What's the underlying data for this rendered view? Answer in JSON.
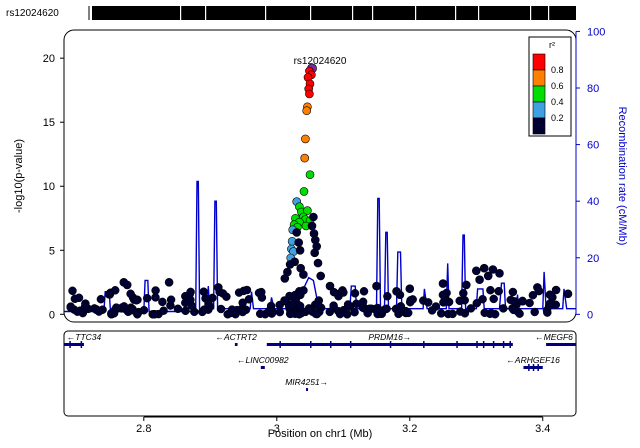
{
  "chart_data": {
    "type": "scatter",
    "title": "",
    "snp_track_label": "rs12024620",
    "lead_snp": {
      "label": "rs12024620",
      "x": 3.053,
      "y": 19.2
    },
    "xlabel": "Position on chr1 (Mb)",
    "ylabel_left": "-log10(p-value)",
    "ylabel_right": "Recombination rate (cM/Mb)",
    "xlim": [
      2.68,
      3.45
    ],
    "ylim_left": [
      -0.6,
      22.2
    ],
    "ylim_right": [
      -2.7,
      100.5
    ],
    "x_ticks": [
      "2.8",
      "3",
      "3.2",
      "3.4"
    ],
    "y_ticks_left": [
      "0",
      "5",
      "10",
      "15",
      "20"
    ],
    "y_ticks_right": [
      "0",
      "20",
      "40",
      "60",
      "80",
      "100"
    ],
    "legend": {
      "title": "r²",
      "labels": [
        "0.8",
        "0.6",
        "0.4",
        "0.2"
      ],
      "colors": [
        "#ff0000",
        "#ff7f00",
        "#00dd00",
        "#40a0e0",
        "#000033"
      ]
    },
    "colors": {
      "recombination_line": "#0000cc",
      "axis_right": "#0000cc",
      "lead_snp": "#7030a0",
      "gene": "#000080"
    },
    "points": [
      [
        3.053,
        19.2,
        "p"
      ],
      [
        3.049,
        19.0,
        "r"
      ],
      [
        3.052,
        18.7,
        "r"
      ],
      [
        3.047,
        18.5,
        "r"
      ],
      [
        3.05,
        18.0,
        "r"
      ],
      [
        3.048,
        17.6,
        "r"
      ],
      [
        3.049,
        17.2,
        "r"
      ],
      [
        3.046,
        16.2,
        "o"
      ],
      [
        3.045,
        15.9,
        "o"
      ],
      [
        3.043,
        13.7,
        "o"
      ],
      [
        3.042,
        12.2,
        "o"
      ],
      [
        3.05,
        10.9,
        "g"
      ],
      [
        3.041,
        9.6,
        "g"
      ],
      [
        3.03,
        8.8,
        "b"
      ],
      [
        3.034,
        8.4,
        "g"
      ],
      [
        3.037,
        8.0,
        "g"
      ],
      [
        3.046,
        8.1,
        "g"
      ],
      [
        3.04,
        7.6,
        "g"
      ],
      [
        3.028,
        7.5,
        "g"
      ],
      [
        3.043,
        7.4,
        "g"
      ],
      [
        3.05,
        7.3,
        "g"
      ],
      [
        3.034,
        7.2,
        "g"
      ],
      [
        3.026,
        7.0,
        "g"
      ],
      [
        3.044,
        6.9,
        "g"
      ],
      [
        3.031,
        6.8,
        "g"
      ],
      [
        3.024,
        6.6,
        "b"
      ],
      [
        3.03,
        6.4,
        "n"
      ],
      [
        3.055,
        7.6,
        "n"
      ],
      [
        3.053,
        6.9,
        "n"
      ],
      [
        3.056,
        6.3,
        "n"
      ],
      [
        3.058,
        5.8,
        "n"
      ],
      [
        3.023,
        5.7,
        "b"
      ],
      [
        3.033,
        5.6,
        "n"
      ],
      [
        3.022,
        5.1,
        "b"
      ],
      [
        3.025,
        4.9,
        "b"
      ],
      [
        3.021,
        4.4,
        "b"
      ],
      [
        3.027,
        4.1,
        "n"
      ],
      [
        3.035,
        5.0,
        "n"
      ],
      [
        3.057,
        4.8,
        "n"
      ],
      [
        3.06,
        5.3,
        "n"
      ],
      [
        3.02,
        3.9,
        "n"
      ],
      [
        3.016,
        3.3,
        "n"
      ],
      [
        3.012,
        2.8,
        "n"
      ],
      [
        3.062,
        4.0,
        "n"
      ],
      [
        3.066,
        3.0,
        "n"
      ],
      [
        3.036,
        3.6,
        "n"
      ],
      [
        3.04,
        3.1,
        "n"
      ],
      [
        2.77,
        2.5,
        "n"
      ],
      [
        2.775,
        2.3,
        "n"
      ],
      [
        2.838,
        2.5,
        "n"
      ],
      [
        2.912,
        2.1,
        "n"
      ],
      [
        2.955,
        1.9,
        "n"
      ],
      [
        3.3,
        3.4,
        "n"
      ],
      [
        3.312,
        3.6,
        "n"
      ],
      [
        3.325,
        3.5,
        "n"
      ],
      [
        3.335,
        3.2,
        "n"
      ],
      [
        3.318,
        3.0,
        "n"
      ],
      [
        3.305,
        2.7,
        "n"
      ],
      [
        3.25,
        2.4,
        "n"
      ],
      [
        3.2,
        2.0,
        "n"
      ],
      [
        3.15,
        2.2,
        "n"
      ],
      [
        3.18,
        1.8,
        "n"
      ],
      [
        3.285,
        2.3,
        "n"
      ],
      [
        3.392,
        2.1,
        "n"
      ],
      [
        3.42,
        1.9,
        "n"
      ],
      [
        3.438,
        1.6,
        "n"
      ],
      [
        3.1,
        1.7,
        "n"
      ],
      [
        3.08,
        2.2,
        "n"
      ]
    ],
    "recombination": [
      [
        2.68,
        1
      ],
      [
        2.74,
        1
      ],
      [
        2.742,
        8
      ],
      [
        2.748,
        8
      ],
      [
        2.75,
        1
      ],
      [
        2.8,
        1
      ],
      [
        2.802,
        12
      ],
      [
        2.806,
        12
      ],
      [
        2.808,
        1
      ],
      [
        2.878,
        1
      ],
      [
        2.88,
        47
      ],
      [
        2.882,
        47
      ],
      [
        2.884,
        1
      ],
      [
        2.895,
        1
      ],
      [
        2.897,
        10
      ],
      [
        2.899,
        2
      ],
      [
        2.905,
        2
      ],
      [
        2.907,
        40
      ],
      [
        2.909,
        40
      ],
      [
        2.911,
        2
      ],
      [
        2.96,
        2
      ],
      [
        2.962,
        8
      ],
      [
        2.965,
        2
      ],
      [
        2.99,
        2
      ],
      [
        2.992,
        6
      ],
      [
        2.996,
        2
      ],
      [
        3.02,
        2
      ],
      [
        3.022,
        5
      ],
      [
        3.03,
        5
      ],
      [
        3.04,
        9
      ],
      [
        3.048,
        13
      ],
      [
        3.055,
        12
      ],
      [
        3.06,
        6
      ],
      [
        3.07,
        2
      ],
      [
        3.11,
        2
      ],
      [
        3.112,
        10
      ],
      [
        3.118,
        10
      ],
      [
        3.12,
        2
      ],
      [
        3.15,
        2
      ],
      [
        3.152,
        41
      ],
      [
        3.154,
        41
      ],
      [
        3.156,
        2
      ],
      [
        3.162,
        2
      ],
      [
        3.164,
        29
      ],
      [
        3.166,
        29
      ],
      [
        3.168,
        2
      ],
      [
        3.18,
        2
      ],
      [
        3.182,
        22
      ],
      [
        3.186,
        22
      ],
      [
        3.188,
        2
      ],
      [
        3.22,
        2
      ],
      [
        3.222,
        9
      ],
      [
        3.226,
        2
      ],
      [
        3.255,
        2
      ],
      [
        3.257,
        18
      ],
      [
        3.259,
        2
      ],
      [
        3.278,
        2
      ],
      [
        3.28,
        28
      ],
      [
        3.282,
        28
      ],
      [
        3.284,
        2
      ],
      [
        3.3,
        2
      ],
      [
        3.302,
        9
      ],
      [
        3.31,
        9
      ],
      [
        3.312,
        2
      ],
      [
        3.335,
        2
      ],
      [
        3.338,
        11
      ],
      [
        3.342,
        11
      ],
      [
        3.344,
        2
      ],
      [
        3.36,
        2
      ],
      [
        3.362,
        7
      ],
      [
        3.364,
        2
      ],
      [
        3.4,
        2
      ],
      [
        3.402,
        15
      ],
      [
        3.405,
        2
      ],
      [
        3.43,
        2
      ],
      [
        3.432,
        9
      ],
      [
        3.436,
        2
      ],
      [
        3.45,
        2
      ]
    ],
    "genes": [
      {
        "name": "TTC34",
        "dir": "-",
        "start": 2.68,
        "end": 2.71,
        "row": 0
      },
      {
        "name": "ACTRT2",
        "dir": "-",
        "start": 2.937,
        "end": 2.941,
        "row": 0
      },
      {
        "name": "PRDM16",
        "dir": "+",
        "start": 2.985,
        "end": 3.355,
        "row": 0
      },
      {
        "name": "MEGF6",
        "dir": "-",
        "start": 3.405,
        "end": 3.45,
        "row": 0
      },
      {
        "name": "LINC00982",
        "dir": "-",
        "start": 2.976,
        "end": 2.982,
        "row": 1
      },
      {
        "name": "ARHGEF16",
        "dir": "-",
        "start": 3.371,
        "end": 3.4,
        "row": 1
      },
      {
        "name": "MIR4251",
        "dir": "+",
        "start": 3.044,
        "end": 3.046,
        "row": 2
      }
    ]
  }
}
